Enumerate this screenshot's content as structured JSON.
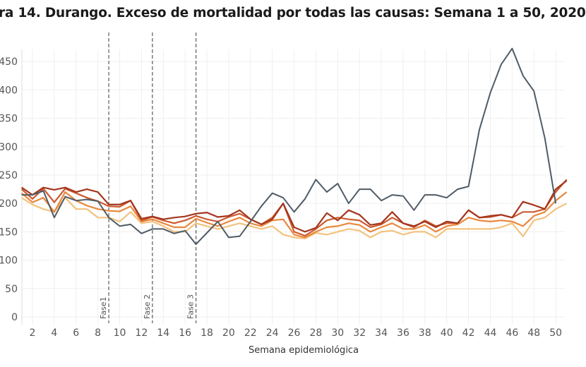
{
  "chart_data": {
    "type": "line",
    "title": "ra 14. Durango. Exceso de mortalidad por todas las causas: Semana 1 a 50, 2020",
    "xlabel": "Semana epidemiológica",
    "ylabel": "",
    "xlim": [
      1,
      51
    ],
    "ylim": [
      0,
      470
    ],
    "grid": true,
    "x_ticks": [
      2,
      4,
      6,
      8,
      10,
      12,
      14,
      16,
      18,
      20,
      22,
      24,
      26,
      28,
      30,
      32,
      34,
      36,
      38,
      40,
      42,
      44,
      46,
      48,
      50
    ],
    "y_ticks": [
      0,
      50,
      100,
      150,
      200,
      250,
      300,
      350,
      400,
      450
    ],
    "annotations": [
      {
        "label": "Fase1",
        "week": 9
      },
      {
        "label": "Fase 2",
        "week": 13
      },
      {
        "label": "Fase 3",
        "week": 17
      }
    ],
    "series": [
      {
        "color": "#f3c27e",
        "values": [
          210,
          198,
          190,
          185,
          210,
          190,
          190,
          175,
          175,
          168,
          185,
          165,
          168,
          160,
          150,
          150,
          165,
          160,
          155,
          160,
          165,
          160,
          155,
          160,
          145,
          140,
          138,
          148,
          145,
          150,
          155,
          152,
          140,
          150,
          152,
          145,
          150,
          150,
          140,
          155,
          155,
          155,
          155,
          155,
          158,
          165,
          142,
          170,
          175,
          190,
          200
        ]
      },
      {
        "color": "#e9883d",
        "values": [
          218,
          202,
          210,
          185,
          220,
          205,
          196,
          190,
          187,
          186,
          195,
          168,
          172,
          165,
          158,
          158,
          173,
          166,
          160,
          168,
          175,
          165,
          160,
          170,
          172,
          145,
          140,
          150,
          158,
          160,
          165,
          162,
          150,
          158,
          165,
          155,
          155,
          162,
          150,
          160,
          163,
          175,
          170,
          168,
          170,
          168,
          160,
          178,
          185,
          205,
          220
        ]
      },
      {
        "color": "#cc5a2e",
        "values": [
          225,
          208,
          226,
          202,
          226,
          218,
          210,
          204,
          195,
          194,
          205,
          170,
          176,
          170,
          165,
          170,
          178,
          172,
          168,
          176,
          182,
          172,
          163,
          175,
          200,
          150,
          143,
          155,
          170,
          175,
          172,
          170,
          158,
          163,
          175,
          165,
          158,
          170,
          160,
          165,
          165,
          188,
          175,
          176,
          180,
          175,
          185,
          185,
          190,
          220,
          242
        ]
      },
      {
        "color": "#a3361f",
        "values": [
          228,
          215,
          228,
          224,
          228,
          220,
          225,
          220,
          198,
          198,
          205,
          173,
          177,
          172,
          175,
          177,
          182,
          184,
          176,
          178,
          188,
          172,
          163,
          172,
          200,
          158,
          150,
          157,
          183,
          170,
          188,
          180,
          162,
          165,
          185,
          165,
          160,
          168,
          158,
          168,
          165,
          188,
          175,
          178,
          180,
          175,
          203,
          197,
          190,
          225,
          240
        ]
      },
      {
        "color": "#4f5b66",
        "values": [
          215,
          215,
          222,
          175,
          212,
          205,
          207,
          204,
          175,
          160,
          163,
          147,
          155,
          155,
          147,
          152,
          128,
          148,
          168,
          140,
          142,
          168,
          195,
          218,
          210,
          185,
          208,
          242,
          220,
          235,
          200,
          225,
          225,
          205,
          215,
          213,
          188,
          215,
          215,
          210,
          225,
          230,
          330,
          395,
          445,
          473,
          425,
          398,
          315,
          200
        ]
      }
    ]
  }
}
